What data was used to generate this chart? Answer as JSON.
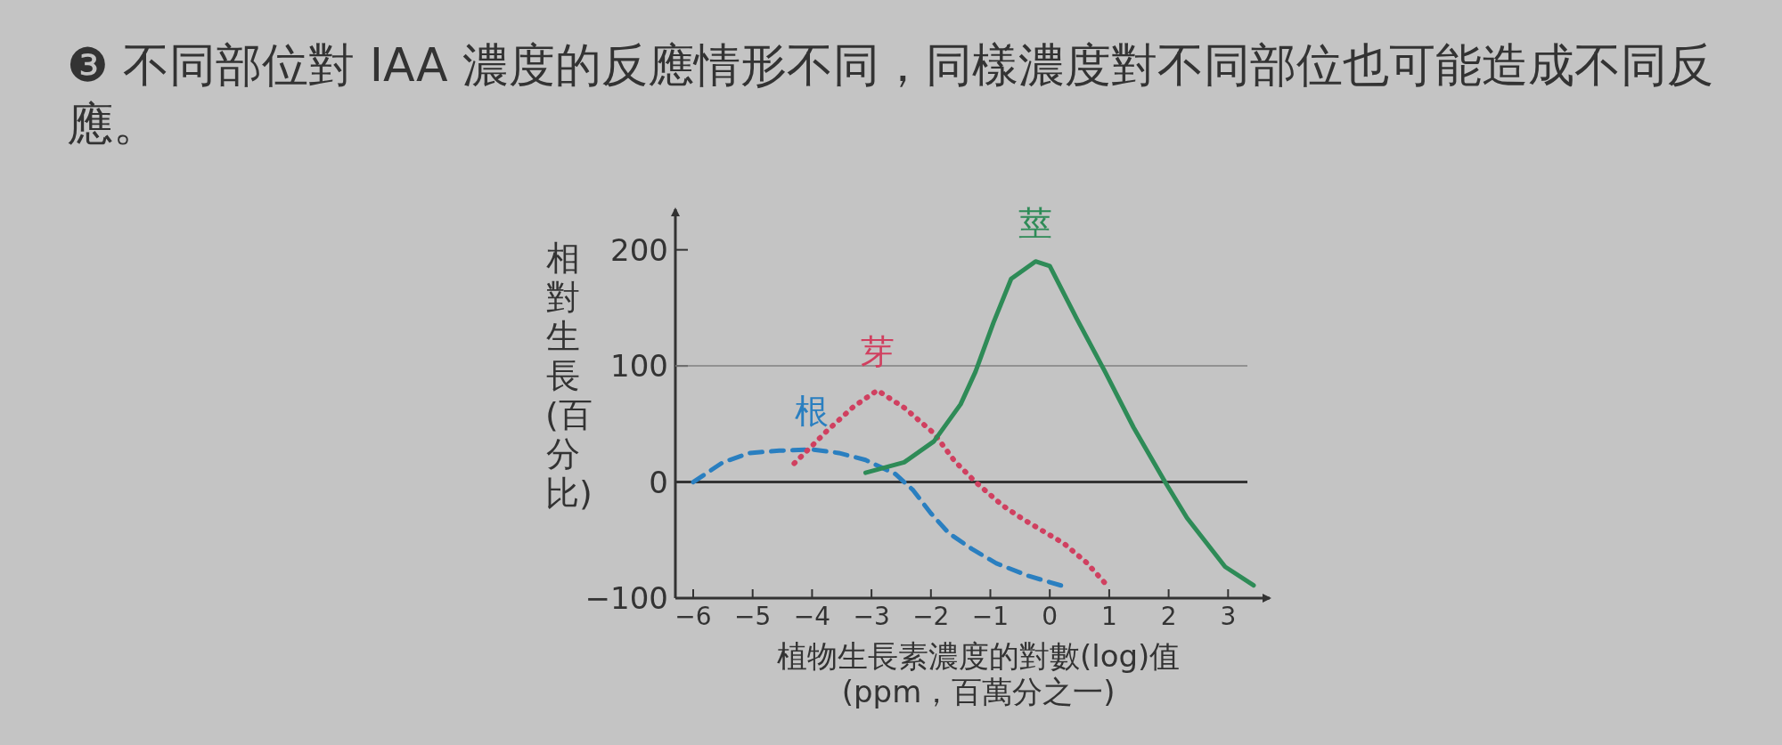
{
  "chart_data": {
    "type": "line",
    "title": "❸ 不同部位對 IAA 濃度的反應情形不同，同樣濃度對不同部位也可能造成不同反應。",
    "xlabel": "植物生長素濃度的對數(log)值\n(ppm，百萬分之一)",
    "ylabel": "相對生長(百分比)",
    "xlim": [
      -6.3,
      3.7
    ],
    "ylim": [
      -100,
      235
    ],
    "xticks": [
      {
        "value": -6,
        "label": "−6"
      },
      {
        "value": -5,
        "label": "−5"
      },
      {
        "value": -4,
        "label": "−4"
      },
      {
        "value": -3,
        "label": "−3"
      },
      {
        "value": -2,
        "label": "−2"
      },
      {
        "value": -1,
        "label": "−1"
      },
      0,
      1,
      2,
      3
    ],
    "yticks": [
      {
        "value": -100,
        "label": "−100"
      },
      0,
      100,
      200
    ],
    "grid": false,
    "ref_lines": [
      {
        "axis": "y",
        "value": 0,
        "color": "#333333"
      },
      {
        "axis": "y",
        "value": 100,
        "color": "#808080"
      }
    ],
    "series": [
      {
        "name": "根",
        "color": "#2a7fc0",
        "line_style": "dashed",
        "x": [
          -6,
          -5.5,
          -5.05,
          -4.55,
          -4,
          -3.55,
          -3.1,
          -2.6,
          -2.3,
          -2,
          -1.7,
          -1.3,
          -0.9,
          -0.35,
          0.25
        ],
        "values": [
          0,
          17,
          25,
          27,
          28,
          25,
          19,
          7,
          -7,
          -27,
          -44,
          -58,
          -70,
          -81,
          -90
        ]
      },
      {
        "name": "芽",
        "color": "#d04060",
        "line_style": "dotted",
        "x": [
          -4.3,
          -3.75,
          -3.3,
          -2.9,
          -2.45,
          -1.95,
          -1.6,
          -1.25,
          -0.8,
          -0.45,
          0.24,
          0.61,
          1.0
        ],
        "values": [
          16,
          44,
          65,
          79,
          64,
          42,
          18,
          0,
          -20,
          -32,
          -53,
          -69,
          -91
        ]
      },
      {
        "name": "莖",
        "color": "#2e8b57",
        "line_style": "solid",
        "x": [
          -3.1,
          -2.45,
          -1.95,
          -1.5,
          -1.25,
          -0.95,
          -0.65,
          -0.24,
          0,
          0.45,
          0.93,
          1.41,
          1.94,
          2.31,
          2.95,
          3.43
        ],
        "values": [
          8,
          17,
          35,
          67,
          95,
          137,
          175,
          190,
          186,
          141,
          95,
          47,
          0,
          -31,
          -73,
          -89
        ]
      }
    ]
  }
}
